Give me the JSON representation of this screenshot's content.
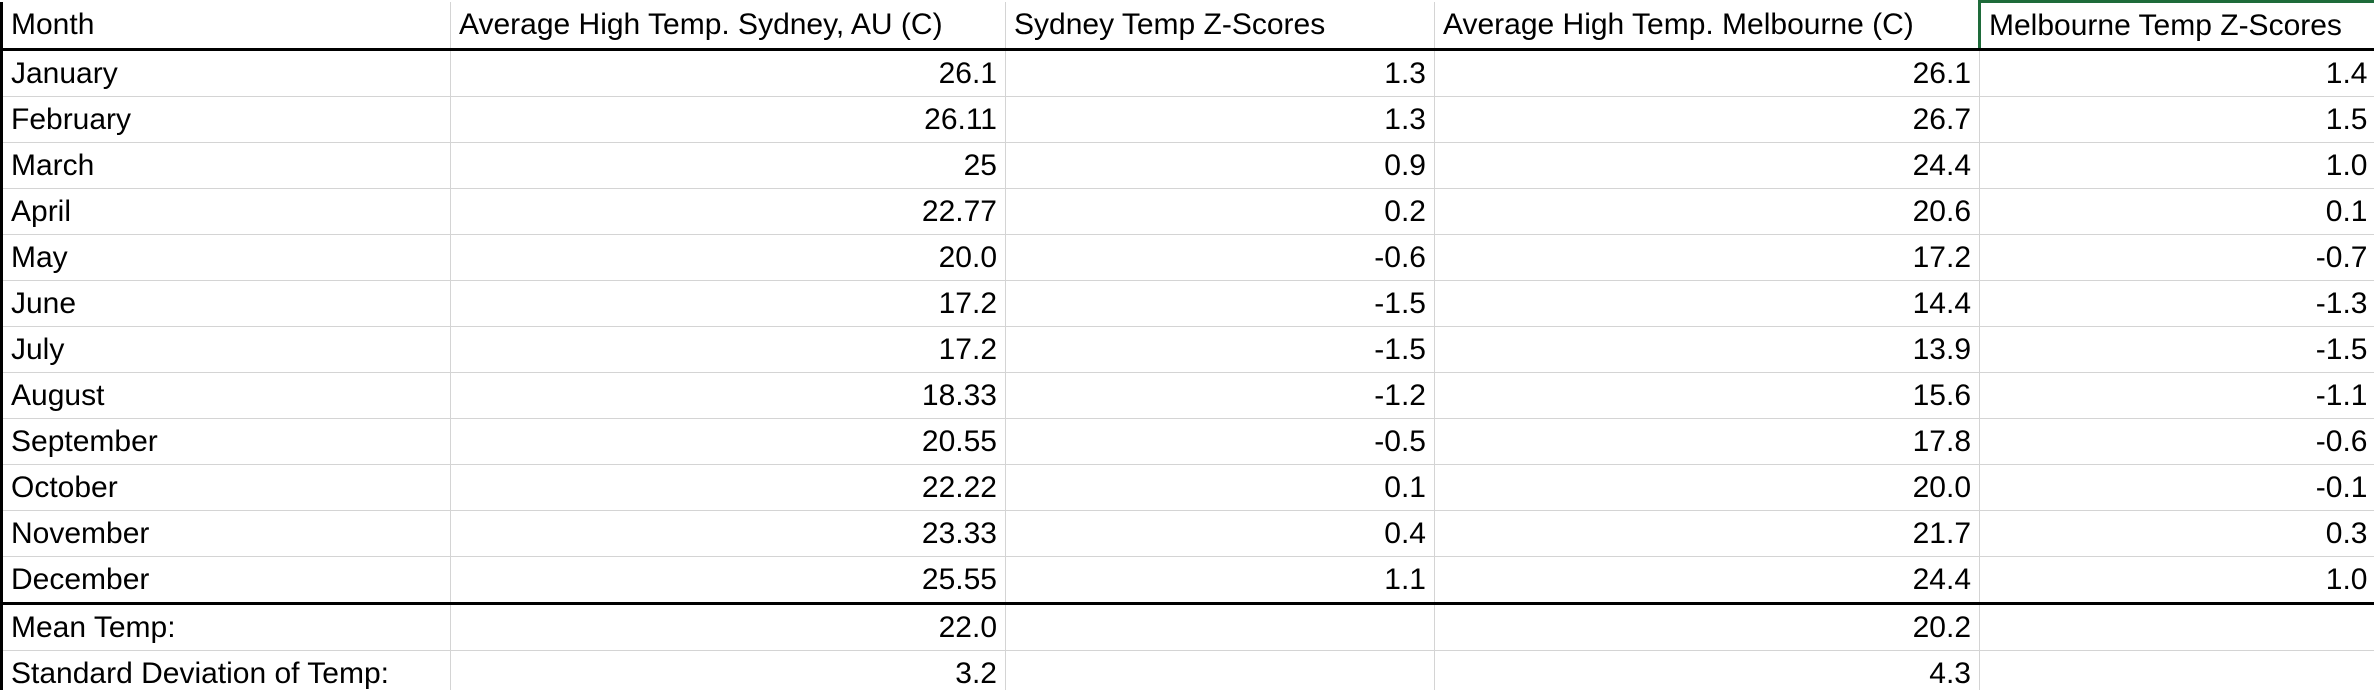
{
  "columns": {
    "month": "Month",
    "sydney_temp": "Average High Temp. Sydney, AU (C)",
    "sydney_z": "Sydney Temp Z-Scores",
    "melbourne_temp": "Average High Temp. Melbourne (C)",
    "melbourne_z": "Melbourne Temp Z-Scores"
  },
  "rows": [
    {
      "month": "January",
      "sydney_temp": "26.1",
      "sydney_z": "1.3",
      "melbourne_temp": "26.1",
      "melbourne_z": "1.4"
    },
    {
      "month": "February",
      "sydney_temp": "26.11",
      "sydney_z": "1.3",
      "melbourne_temp": "26.7",
      "melbourne_z": "1.5"
    },
    {
      "month": "March",
      "sydney_temp": "25",
      "sydney_z": "0.9",
      "melbourne_temp": "24.4",
      "melbourne_z": "1.0"
    },
    {
      "month": "April",
      "sydney_temp": "22.77",
      "sydney_z": "0.2",
      "melbourne_temp": "20.6",
      "melbourne_z": "0.1"
    },
    {
      "month": "May",
      "sydney_temp": "20.0",
      "sydney_z": "-0.6",
      "melbourne_temp": "17.2",
      "melbourne_z": "-0.7"
    },
    {
      "month": "June",
      "sydney_temp": "17.2",
      "sydney_z": "-1.5",
      "melbourne_temp": "14.4",
      "melbourne_z": "-1.3"
    },
    {
      "month": "July",
      "sydney_temp": "17.2",
      "sydney_z": "-1.5",
      "melbourne_temp": "13.9",
      "melbourne_z": "-1.5"
    },
    {
      "month": "August",
      "sydney_temp": "18.33",
      "sydney_z": "-1.2",
      "melbourne_temp": "15.6",
      "melbourne_z": "-1.1"
    },
    {
      "month": "September",
      "sydney_temp": "20.55",
      "sydney_z": "-0.5",
      "melbourne_temp": "17.8",
      "melbourne_z": "-0.6"
    },
    {
      "month": "October",
      "sydney_temp": "22.22",
      "sydney_z": "0.1",
      "melbourne_temp": "20.0",
      "melbourne_z": "-0.1"
    },
    {
      "month": "November",
      "sydney_temp": "23.33",
      "sydney_z": "0.4",
      "melbourne_temp": "21.7",
      "melbourne_z": "0.3"
    },
    {
      "month": "December",
      "sydney_temp": "25.55",
      "sydney_z": "1.1",
      "melbourne_temp": "24.4",
      "melbourne_z": "1.0"
    }
  ],
  "summary": [
    {
      "label": "Mean Temp:",
      "sydney_temp": "22.0",
      "melbourne_temp": "20.2"
    },
    {
      "label": "Standard Deviation of Temp:",
      "sydney_temp": "3.2",
      "melbourne_temp": "4.3"
    }
  ],
  "colors": {
    "selected_cell_border": "#1e6b3a",
    "gridline": "#d4d4d4",
    "table_border": "#000000"
  }
}
